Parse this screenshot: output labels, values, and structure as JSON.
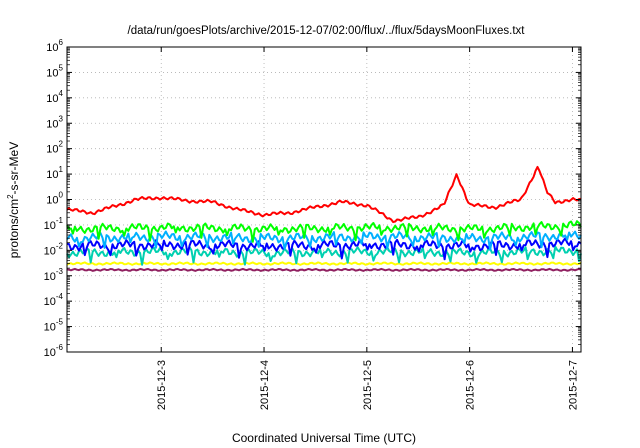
{
  "chart_data": {
    "type": "line",
    "title": "/data/run/goesPlots/archive/2015-12-07/02:00/flux/../flux/5daysMoonFluxes.txt",
    "xlabel": "Coordinated Universal Time (UTC)",
    "ylabel": "protons/cm²-s-sr-MeV",
    "ylabel_parts": {
      "pre": "protons/cm",
      "sup": "2",
      "post": "-s-sr-MeV"
    },
    "y_scale": "log",
    "ylim": [
      1e-06,
      1000000.0
    ],
    "y_ticks": [
      {
        "base": "10",
        "exp": "-6"
      },
      {
        "base": "10",
        "exp": "-5"
      },
      {
        "base": "10",
        "exp": "-4"
      },
      {
        "base": "10",
        "exp": "-3"
      },
      {
        "base": "10",
        "exp": "-2"
      },
      {
        "base": "10",
        "exp": "-1"
      },
      {
        "base": "10",
        "exp": "0"
      },
      {
        "base": "10",
        "exp": "1"
      },
      {
        "base": "10",
        "exp": "2"
      },
      {
        "base": "10",
        "exp": "3"
      },
      {
        "base": "10",
        "exp": "4"
      },
      {
        "base": "10",
        "exp": "5"
      },
      {
        "base": "10",
        "exp": "6"
      }
    ],
    "xlim": [
      "2015-12-02T02:00",
      "2015-12-07T02:00"
    ],
    "x_ticks": [
      "2015-12-3",
      "2015-12-4",
      "2015-12-5",
      "2015-12-6",
      "2015-12-7"
    ],
    "grid": true,
    "series": [
      {
        "color": "#ff0000",
        "x": [
          "2015-12-02T02:00",
          "2015-12-02T08:00",
          "2015-12-02T14:00",
          "2015-12-02T18:00",
          "2015-12-03T00:00",
          "2015-12-03T06:00",
          "2015-12-03T12:00",
          "2015-12-03T18:00",
          "2015-12-04T00:00",
          "2015-12-04T06:00",
          "2015-12-04T12:00",
          "2015-12-04T18:00",
          "2015-12-05T00:00",
          "2015-12-05T06:00",
          "2015-12-05T12:00",
          "2015-12-05T18:00",
          "2015-12-05T21:00",
          "2015-12-06T00:00",
          "2015-12-06T06:00",
          "2015-12-06T12:00",
          "2015-12-06T16:00",
          "2015-12-06T18:00",
          "2015-12-06T20:00",
          "2015-12-07T00:00",
          "2015-12-07T02:00"
        ],
        "values": [
          0.4,
          0.3,
          0.6,
          1.0,
          1.2,
          0.9,
          0.8,
          0.4,
          0.25,
          0.3,
          0.5,
          0.8,
          0.6,
          0.15,
          0.2,
          0.6,
          10,
          0.6,
          0.5,
          1.0,
          20,
          2,
          0.8,
          1.0,
          0.9
        ]
      },
      {
        "color": "#00ff00",
        "x": [
          "2015-12-02T02:00",
          "2015-12-03T02:00",
          "2015-12-04T02:00",
          "2015-12-05T02:00",
          "2015-12-06T02:00",
          "2015-12-07T02:00"
        ],
        "values": [
          0.07,
          0.08,
          0.07,
          0.08,
          0.07,
          0.1
        ]
      },
      {
        "color": "#00b0ff",
        "x": [
          "2015-12-02T02:00",
          "2015-12-03T02:00",
          "2015-12-04T02:00",
          "2015-12-05T02:00",
          "2015-12-06T02:00",
          "2015-12-07T02:00"
        ],
        "values": [
          0.03,
          0.035,
          0.03,
          0.035,
          0.03,
          0.04
        ]
      },
      {
        "color": "#0000ff",
        "x": [
          "2015-12-02T02:00",
          "2015-12-03T02:00",
          "2015-12-04T02:00",
          "2015-12-05T02:00",
          "2015-12-06T02:00",
          "2015-12-07T02:00"
        ],
        "values": [
          0.015,
          0.017,
          0.015,
          0.017,
          0.015,
          0.02
        ]
      },
      {
        "color": "#00d0b0",
        "x": [
          "2015-12-02T02:00",
          "2015-12-03T02:00",
          "2015-12-04T02:00",
          "2015-12-05T02:00",
          "2015-12-06T02:00",
          "2015-12-07T02:00"
        ],
        "values": [
          0.008,
          0.009,
          0.008,
          0.009,
          0.008,
          0.01
        ]
      },
      {
        "color": "#ffff00",
        "x": [
          "2015-12-02T02:00",
          "2015-12-03T02:00",
          "2015-12-04T02:00",
          "2015-12-05T02:00",
          "2015-12-06T02:00",
          "2015-12-07T02:00"
        ],
        "values": [
          0.003,
          0.003,
          0.003,
          0.003,
          0.003,
          0.003
        ]
      },
      {
        "color": "#902060",
        "x": [
          "2015-12-02T02:00",
          "2015-12-03T02:00",
          "2015-12-04T02:00",
          "2015-12-05T02:00",
          "2015-12-06T02:00",
          "2015-12-07T02:00"
        ],
        "values": [
          0.0017,
          0.0017,
          0.0017,
          0.0017,
          0.0017,
          0.0017
        ]
      }
    ]
  }
}
